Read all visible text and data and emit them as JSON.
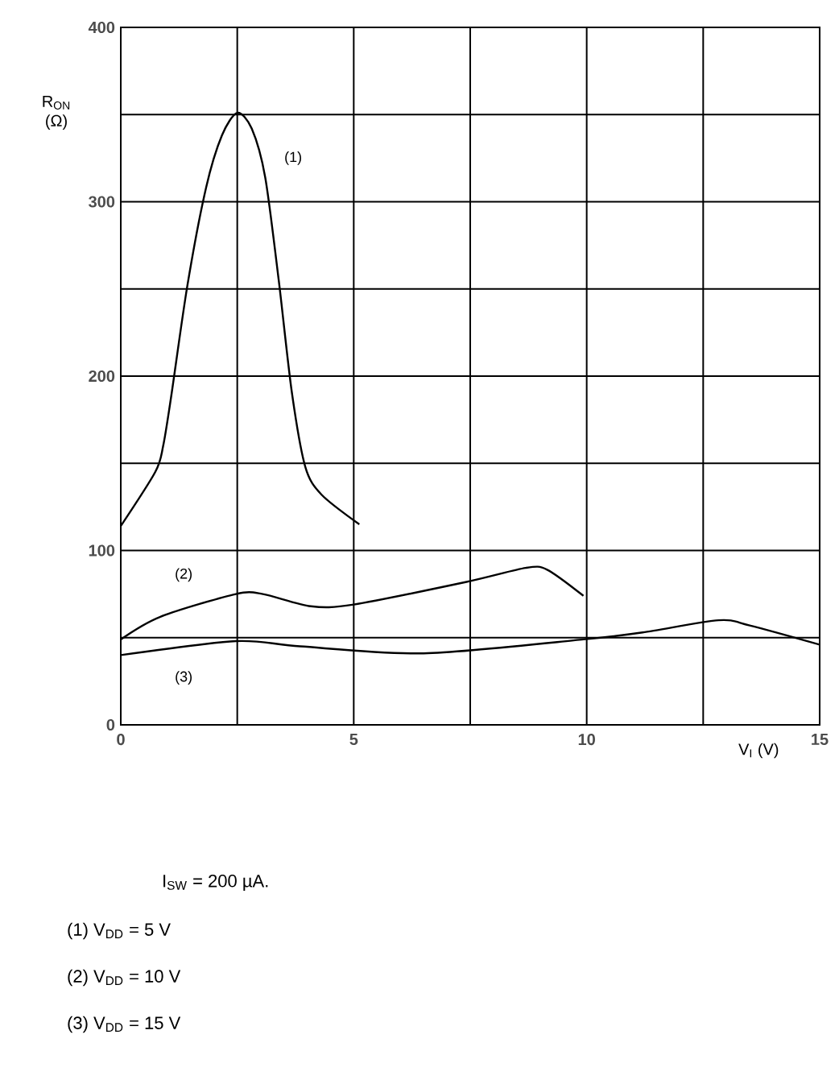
{
  "chart_data": {
    "type": "line",
    "xlabel": "V$_{I}$ (V)",
    "ylabel": "R$_{ON}$ (Ω)",
    "xlim": [
      0,
      15
    ],
    "ylim": [
      0,
      400
    ],
    "xticks": [
      0,
      {
        "value": 2.5,
        "label": null
      },
      5,
      {
        "value": 7.5,
        "label": null
      },
      10,
      {
        "value": 12.5,
        "label": null
      },
      15
    ],
    "yticks": [
      0,
      {
        "value": 50,
        "label": null
      },
      100,
      {
        "value": 150,
        "label": null
      },
      200,
      {
        "value": 250,
        "label": null
      },
      300,
      {
        "value": 350,
        "label": null
      },
      400
    ],
    "grid": true,
    "marker": "none",
    "line_style": "solid",
    "series": [
      {
        "name": "(1)",
        "color": "#000000",
        "x": [
          0,
          0.74,
          0.91,
          1.08,
          1.43,
          1.83,
          2.17,
          2.5,
          2.81,
          3.1,
          3.39,
          3.67,
          3.96,
          4.31,
          5.12
        ],
        "values": [
          114,
          145,
          160,
          188,
          252,
          308,
          338,
          351,
          342,
          314,
          255,
          191,
          148,
          132,
          115
        ]
      },
      {
        "name": "(2)",
        "color": "#000000",
        "x": [
          0,
          0.85,
          2.47,
          3.05,
          4.08,
          5,
          7.42,
          8.69,
          9.15,
          9.93
        ],
        "values": [
          49,
          62,
          75,
          75,
          68,
          69,
          82,
          90,
          89,
          74
        ]
      },
      {
        "name": "(3)",
        "color": "#000000",
        "x": [
          0,
          2.47,
          3.85,
          6.5,
          9.93,
          11.2,
          12.83,
          13.5,
          15
        ],
        "values": [
          40,
          48,
          45,
          41,
          49,
          53,
          60,
          57,
          46
        ]
      }
    ],
    "annotations": [
      "I$_{SW}$ = 200 µA.",
      "(1)  V$_{DD}$ = 5 V",
      "(2)  V$_{DD}$ = 10 V",
      "(3)  V$_{DD}$ = 15 V"
    ]
  }
}
